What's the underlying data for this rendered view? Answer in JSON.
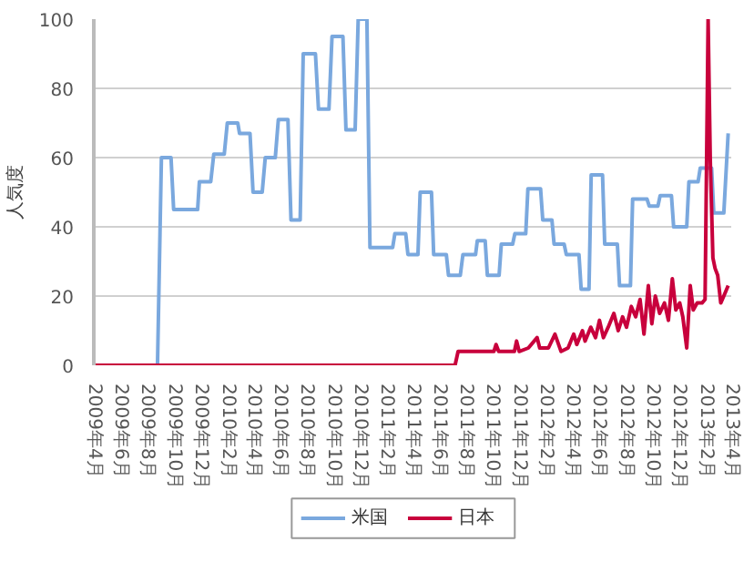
{
  "chart_data": {
    "type": "line",
    "ylabel": "人気度",
    "xlim": [
      "2009-04",
      "2013-04"
    ],
    "ylim": [
      0,
      100
    ],
    "yticks": [
      0,
      20,
      40,
      60,
      80,
      100
    ],
    "xticks": [
      {
        "value": "2009-04",
        "label": "2009年4月"
      },
      {
        "value": "2009-06",
        "label": "2009年6月"
      },
      {
        "value": "2009-08",
        "label": "2009年8月"
      },
      {
        "value": "2009-10",
        "label": "2009年10月"
      },
      {
        "value": "2009-12",
        "label": "2009年12月"
      },
      {
        "value": "2010-02",
        "label": "2010年2月"
      },
      {
        "value": "2010-04",
        "label": "2010年4月"
      },
      {
        "value": "2010-06",
        "label": "2010年6月"
      },
      {
        "value": "2010-08",
        "label": "2010年8月"
      },
      {
        "value": "2010-10",
        "label": "2010年10月"
      },
      {
        "value": "2010-12",
        "label": "2010年12月"
      },
      {
        "value": "2011-02",
        "label": "2011年2月"
      },
      {
        "value": "2011-04",
        "label": "2011年4月"
      },
      {
        "value": "2011-06",
        "label": "2011年6月"
      },
      {
        "value": "2011-08",
        "label": "2011年8月"
      },
      {
        "value": "2011-10",
        "label": "2011年10月"
      },
      {
        "value": "2011-12",
        "label": "2011年12月"
      },
      {
        "value": "2012-02",
        "label": "2012年2月"
      },
      {
        "value": "2012-04",
        "label": "2012年4月"
      },
      {
        "value": "2012-06",
        "label": "2012年6月"
      },
      {
        "value": "2012-08",
        "label": "2012年8月"
      },
      {
        "value": "2012-10",
        "label": "2012年10月"
      },
      {
        "value": "2012-12",
        "label": "2012年12月"
      },
      {
        "value": "2013-02",
        "label": "2013年2月"
      },
      {
        "value": "2013-04",
        "label": "2013年4月"
      }
    ],
    "grid": "y",
    "legend": "bottom",
    "series": [
      {
        "name": "米国",
        "color": "#7aa8de",
        "x": [
          "2009-04-01",
          "2009-08-25",
          "2009-09-03",
          "2009-09-25",
          "2009-10-01",
          "2009-11-25",
          "2009-11-29",
          "2009-12-25",
          "2010-01-01",
          "2010-01-25",
          "2010-02-01",
          "2010-02-25",
          "2010-03-01",
          "2010-03-25",
          "2010-04-01",
          "2010-04-22",
          "2010-04-29",
          "2010-05-22",
          "2010-05-29",
          "2010-06-20",
          "2010-06-27",
          "2010-07-18",
          "2010-07-25",
          "2010-08-22",
          "2010-08-29",
          "2010-09-22",
          "2010-09-29",
          "2010-10-24",
          "2010-10-31",
          "2010-11-21",
          "2010-11-28",
          "2010-12-18",
          "2010-12-25",
          "2011-02-15",
          "2011-02-20",
          "2011-03-17",
          "2011-03-22",
          "2011-04-14",
          "2011-04-19",
          "2011-05-15",
          "2011-05-20",
          "2011-06-18",
          "2011-06-23",
          "2011-07-20",
          "2011-07-26",
          "2011-08-24",
          "2011-08-28",
          "2011-09-15",
          "2011-09-20",
          "2011-10-17",
          "2011-10-22",
          "2011-11-17",
          "2011-11-22",
          "2011-12-17",
          "2011-12-22",
          "2012-01-20",
          "2012-01-25",
          "2012-02-15",
          "2012-02-20",
          "2012-03-14",
          "2012-03-19",
          "2012-04-17",
          "2012-04-22",
          "2012-05-10",
          "2012-05-15",
          "2012-06-10",
          "2012-06-15",
          "2012-07-14",
          "2012-07-19",
          "2012-08-13",
          "2012-08-18",
          "2012-09-20",
          "2012-09-25",
          "2012-10-15",
          "2012-10-20",
          "2012-11-15",
          "2012-11-20",
          "2012-12-20",
          "2012-12-25",
          "2013-01-15",
          "2013-01-20",
          "2013-02-15",
          "2013-02-20",
          "2013-03-15",
          "2013-03-25"
        ],
        "values": [
          0,
          0,
          60,
          60,
          45,
          45,
          53,
          53,
          61,
          61,
          70,
          70,
          67,
          67,
          50,
          50,
          60,
          60,
          71,
          71,
          42,
          42,
          90,
          90,
          74,
          74,
          95,
          95,
          68,
          68,
          100,
          100,
          34,
          34,
          38,
          38,
          32,
          32,
          50,
          50,
          32,
          32,
          26,
          26,
          32,
          32,
          36,
          36,
          26,
          26,
          35,
          35,
          38,
          38,
          51,
          51,
          42,
          42,
          35,
          35,
          32,
          32,
          22,
          22,
          55,
          55,
          35,
          35,
          23,
          23,
          48,
          48,
          46,
          46,
          49,
          49,
          40,
          40,
          53,
          53,
          57,
          57,
          44,
          44,
          67
        ]
      },
      {
        "name": "日本",
        "color": "#c8003c",
        "x": [
          "2009-04-01",
          "2011-07-08",
          "2011-07-15",
          "2011-10-05",
          "2011-10-10",
          "2011-10-16",
          "2011-11-21",
          "2011-11-26",
          "2011-12-02",
          "2011-12-23",
          "2012-01-12",
          "2012-01-18",
          "2012-02-07",
          "2012-02-22",
          "2012-03-07",
          "2012-03-23",
          "2012-04-05",
          "2012-04-12",
          "2012-04-25",
          "2012-05-01",
          "2012-05-14",
          "2012-05-25",
          "2012-06-03",
          "2012-06-12",
          "2012-06-23",
          "2012-07-06",
          "2012-07-16",
          "2012-07-26",
          "2012-08-04",
          "2012-08-15",
          "2012-08-25",
          "2012-09-04",
          "2012-09-13",
          "2012-09-23",
          "2012-10-01",
          "2012-10-09",
          "2012-10-19",
          "2012-10-30",
          "2012-11-08",
          "2012-11-17",
          "2012-11-25",
          "2012-12-04",
          "2012-12-11",
          "2012-12-20",
          "2012-12-28",
          "2013-01-04",
          "2013-01-13",
          "2013-01-24",
          "2013-01-31",
          "2013-02-05",
          "2013-02-07",
          "2013-02-12",
          "2013-02-18",
          "2013-02-23",
          "2013-03-01",
          "2013-03-08",
          "2013-03-15",
          "2013-03-25"
        ],
        "values": [
          0,
          0,
          4,
          4,
          6,
          4,
          4,
          7,
          4,
          5,
          8,
          5,
          5,
          9,
          4,
          5,
          9,
          6,
          10,
          7,
          11,
          8,
          13,
          8,
          11,
          15,
          10,
          14,
          11,
          17,
          14,
          19,
          9,
          23,
          12,
          20,
          15,
          18,
          13,
          25,
          16,
          18,
          14,
          5,
          23,
          16,
          18,
          18,
          19,
          76,
          100,
          59,
          31,
          28,
          26,
          18,
          20,
          23
        ]
      }
    ]
  }
}
